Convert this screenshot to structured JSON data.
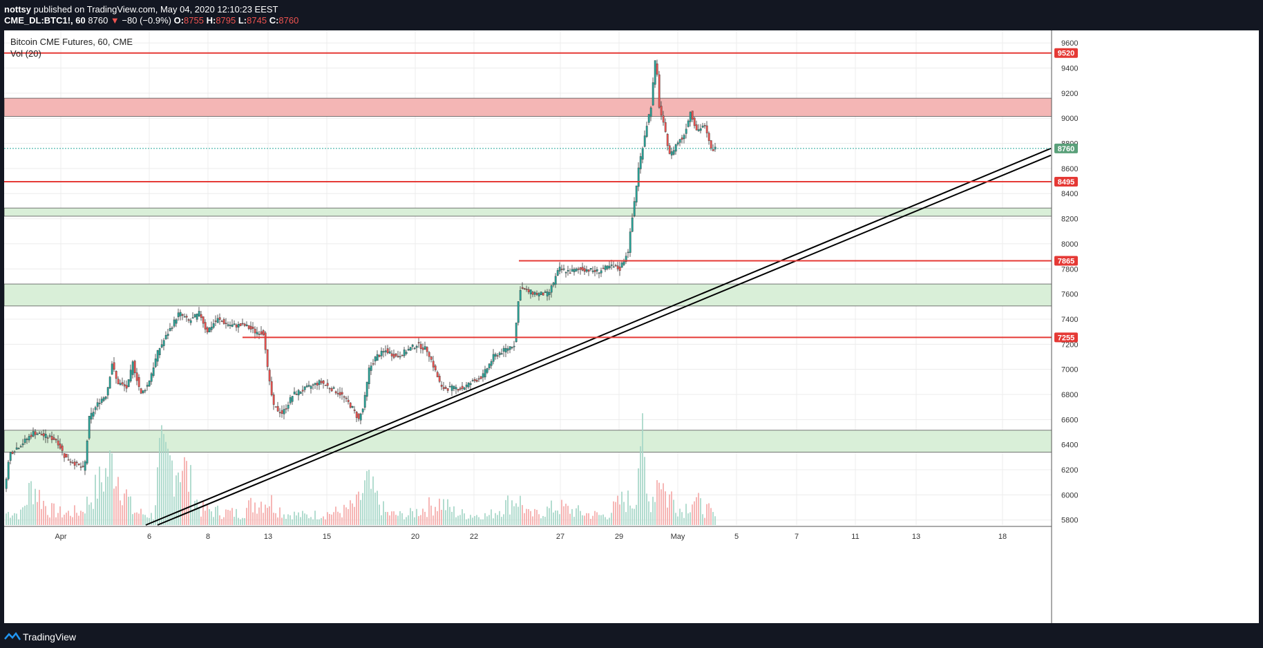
{
  "header": {
    "user": "nottsy",
    "published": "published on TradingView.com, May 04, 2020 12:10:23 EEST",
    "symbol": "CME_DL:BTC1!, 60",
    "last": "8760",
    "change_arrow": "▼",
    "change": "−80 (−0.9%)",
    "o_label": "O:",
    "o_value": "8755",
    "h_label": "H:",
    "h_value": "8795",
    "l_label": "L:",
    "l_value": "8745",
    "c_label": "C:",
    "c_value": "8760"
  },
  "legend": {
    "title": "Bitcoin CME Futures, 60, CME",
    "volume": "Vol (20)"
  },
  "footer": {
    "brand": "TradingView",
    "logo_icon": "tradingview-logo-icon"
  },
  "chart_data": {
    "type": "candlestick",
    "title": "Bitcoin CME Futures, 60, CME",
    "ylim": [
      5760,
      9700
    ],
    "y_ticks": [
      5800,
      6000,
      6200,
      6400,
      6600,
      6800,
      7000,
      7200,
      7400,
      7600,
      7800,
      8000,
      8200,
      8400,
      8600,
      8800,
      9000,
      9200,
      9400,
      9600
    ],
    "x_ticks": [
      "Apr",
      "6",
      "8",
      "13",
      "15",
      "20",
      "22",
      "27",
      "29",
      "May",
      "5",
      "7",
      "11",
      "13",
      "18"
    ],
    "x_tick_index": [
      82,
      210,
      295,
      382,
      467,
      595,
      680,
      805,
      890,
      975,
      1060,
      1147,
      1232,
      1320,
      1445
    ],
    "price_path": [
      [
        0,
        5960
      ],
      [
        10,
        6330
      ],
      [
        30,
        6420
      ],
      [
        45,
        6500
      ],
      [
        60,
        6470
      ],
      [
        78,
        6440
      ],
      [
        90,
        6300
      ],
      [
        105,
        6250
      ],
      [
        118,
        6200
      ],
      [
        125,
        6610
      ],
      [
        140,
        6750
      ],
      [
        150,
        6800
      ],
      [
        158,
        7050
      ],
      [
        165,
        6900
      ],
      [
        180,
        6850
      ],
      [
        188,
        7050
      ],
      [
        200,
        6800
      ],
      [
        210,
        6880
      ],
      [
        225,
        7150
      ],
      [
        240,
        7300
      ],
      [
        255,
        7450
      ],
      [
        270,
        7380
      ],
      [
        285,
        7450
      ],
      [
        295,
        7300
      ],
      [
        310,
        7400
      ],
      [
        330,
        7350
      ],
      [
        350,
        7350
      ],
      [
        365,
        7300
      ],
      [
        378,
        7290
      ],
      [
        384,
        6950
      ],
      [
        392,
        6700
      ],
      [
        405,
        6650
      ],
      [
        420,
        6800
      ],
      [
        440,
        6850
      ],
      [
        460,
        6900
      ],
      [
        475,
        6850
      ],
      [
        490,
        6800
      ],
      [
        505,
        6700
      ],
      [
        515,
        6600
      ],
      [
        522,
        6700
      ],
      [
        530,
        7000
      ],
      [
        540,
        7100
      ],
      [
        555,
        7150
      ],
      [
        570,
        7100
      ],
      [
        585,
        7150
      ],
      [
        600,
        7200
      ],
      [
        615,
        7150
      ],
      [
        625,
        7000
      ],
      [
        635,
        6850
      ],
      [
        650,
        6850
      ],
      [
        665,
        6850
      ],
      [
        680,
        6900
      ],
      [
        695,
        6950
      ],
      [
        710,
        7100
      ],
      [
        725,
        7150
      ],
      [
        740,
        7200
      ],
      [
        748,
        7650
      ],
      [
        760,
        7620
      ],
      [
        775,
        7600
      ],
      [
        790,
        7600
      ],
      [
        805,
        7800
      ],
      [
        820,
        7780
      ],
      [
        840,
        7800
      ],
      [
        860,
        7780
      ],
      [
        880,
        7820
      ],
      [
        893,
        7800
      ],
      [
        905,
        7950
      ],
      [
        912,
        8250
      ],
      [
        920,
        8600
      ],
      [
        930,
        8900
      ],
      [
        938,
        9100
      ],
      [
        945,
        9500
      ],
      [
        950,
        9100
      ],
      [
        958,
        8900
      ],
      [
        966,
        8700
      ],
      [
        975,
        8800
      ],
      [
        985,
        8850
      ],
      [
        995,
        9050
      ],
      [
        1005,
        8900
      ],
      [
        1015,
        8950
      ],
      [
        1025,
        8750
      ],
      [
        1032,
        8760
      ]
    ],
    "volume_index": [
      [
        0,
        5
      ],
      [
        12,
        6
      ],
      [
        22,
        4
      ],
      [
        40,
        18
      ],
      [
        62,
        7
      ],
      [
        85,
        5
      ],
      [
        110,
        6
      ],
      [
        125,
        12
      ],
      [
        157,
        28
      ],
      [
        185,
        6
      ],
      [
        215,
        4
      ],
      [
        225,
        30
      ],
      [
        232,
        26
      ],
      [
        256,
        28
      ],
      [
        282,
        7
      ],
      [
        305,
        6
      ],
      [
        340,
        5
      ],
      [
        362,
        10
      ],
      [
        382,
        11
      ],
      [
        405,
        5
      ],
      [
        438,
        4
      ],
      [
        490,
        6
      ],
      [
        510,
        9
      ],
      [
        524,
        18
      ],
      [
        552,
        5
      ],
      [
        580,
        4
      ],
      [
        630,
        10
      ],
      [
        655,
        5
      ],
      [
        700,
        4
      ],
      [
        742,
        12
      ],
      [
        760,
        4
      ],
      [
        800,
        8
      ],
      [
        840,
        5
      ],
      [
        870,
        4
      ],
      [
        895,
        11
      ],
      [
        912,
        10
      ],
      [
        920,
        42
      ],
      [
        930,
        9
      ],
      [
        938,
        13
      ],
      [
        948,
        25
      ],
      [
        958,
        11
      ],
      [
        964,
        13
      ],
      [
        980,
        6
      ],
      [
        996,
        12
      ],
      [
        1008,
        8
      ],
      [
        1020,
        6
      ],
      [
        1030,
        3
      ]
    ],
    "horizontal_lines": [
      {
        "price": 9520,
        "label": "9520"
      },
      {
        "price": 8495,
        "label": "8495"
      },
      {
        "price": 7865,
        "label": "7865",
        "x_start_index": 745
      },
      {
        "price": 7255,
        "label": "7255",
        "x_start_index": 345
      }
    ],
    "zones": [
      {
        "from": 9015,
        "to": 9160,
        "color": "#f4b6b5"
      },
      {
        "from": 8220,
        "to": 8285,
        "color": "#d9efd8"
      },
      {
        "from": 7505,
        "to": 7680,
        "color": "#d9efd8"
      },
      {
        "from": 6340,
        "to": 6515,
        "color": "#d9efd8"
      }
    ],
    "trendlines": [
      {
        "x1": 205,
        "y1": 5760,
        "x2": 1515,
        "y2": 8760
      },
      {
        "x1": 222,
        "y1": 5760,
        "x2": 1515,
        "y2": 8705
      }
    ],
    "current_price": {
      "price": 8760,
      "label": "8760",
      "color": "#26a69a"
    },
    "colors": {
      "up": "#26a69a",
      "down": "#ef5350",
      "level": "#e53935",
      "grid": "#ececec"
    }
  }
}
